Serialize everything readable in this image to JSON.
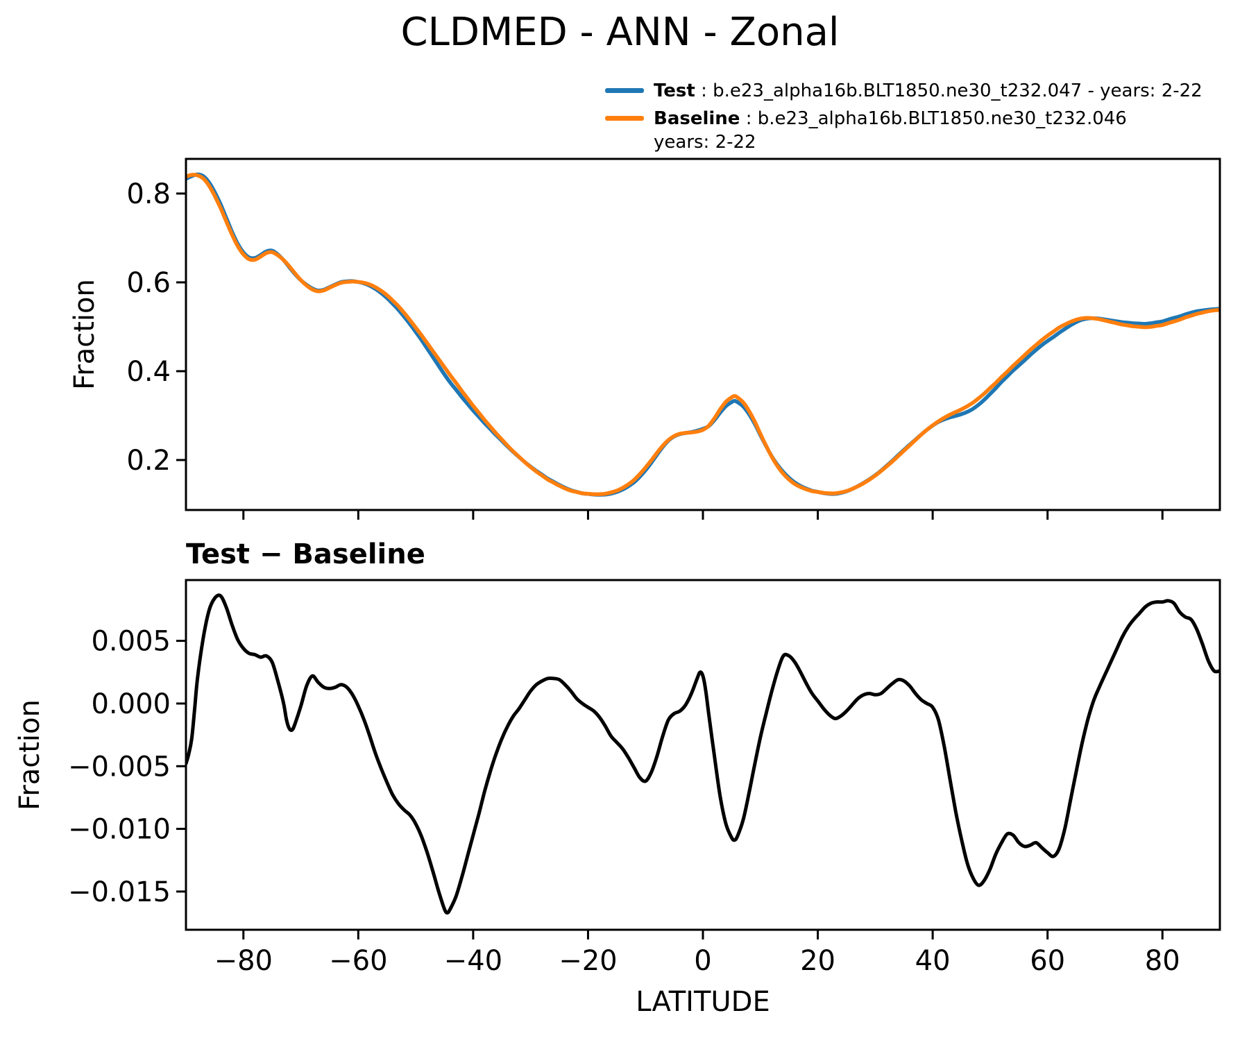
{
  "figure": {
    "background": "#ffffff"
  },
  "legend": {
    "test": {
      "name": "Test",
      "rest": " : b.e23_alpha16b.BLT1850.ne30_t232.047 - years: 2-22",
      "color": "#1f77b4"
    },
    "baseline": {
      "name": "Baseline",
      "rest": " : b.e23_alpha16b.BLT1850.ne30_t232.046",
      "rest2": "years: 2-22",
      "color": "#ff7f0e"
    }
  },
  "chart_data": {
    "type": "line",
    "title": "CLDMED - ANN - Zonal",
    "xlabel": "LATITUDE",
    "grid": false,
    "legend_position": "top-right",
    "xlim": [
      -90,
      90
    ],
    "xticks": [
      -80,
      -60,
      -40,
      -20,
      0,
      20,
      40,
      60,
      80
    ],
    "xtick_labels": [
      "−80",
      "−60",
      "−40",
      "−20",
      "0",
      "20",
      "40",
      "60",
      "80"
    ],
    "panels": [
      {
        "id": "top",
        "ylabel": "Fraction",
        "ylim": [
          0.0875,
          0.878
        ],
        "yticks": [
          0.8,
          0.6,
          0.4,
          0.2
        ],
        "ytick_labels": [
          "0.8",
          "0.6",
          "0.4",
          "0.2"
        ],
        "show_xtick_labels": false,
        "series": [
          {
            "name": "Test",
            "color": "#1f77b4",
            "derive": "baseline_plus_diff"
          },
          {
            "name": "Baseline",
            "color": "#ff7f0e",
            "points_ref": "baseline"
          }
        ]
      },
      {
        "id": "diff",
        "subtitle": "Test − Baseline",
        "ylabel": "Fraction",
        "ylim": [
          -0.01805,
          0.00985
        ],
        "yticks": [
          0.005,
          0.0,
          -0.005,
          -0.01,
          -0.015
        ],
        "ytick_labels": [
          "0.005",
          "0.000",
          "−0.005",
          "−0.010",
          "−0.015"
        ],
        "show_xtick_labels": true,
        "series": [
          {
            "name": "Test − Baseline",
            "color": "#000000",
            "points_ref": "diff"
          }
        ]
      }
    ],
    "baseline": [
      [
        -90,
        0.838
      ],
      [
        -89,
        0.842
      ],
      [
        -88,
        0.841
      ],
      [
        -87,
        0.834
      ],
      [
        -86,
        0.818
      ],
      [
        -85,
        0.795
      ],
      [
        -84,
        0.768
      ],
      [
        -83,
        0.738
      ],
      [
        -82,
        0.708
      ],
      [
        -81,
        0.682
      ],
      [
        -80,
        0.663
      ],
      [
        -79,
        0.652
      ],
      [
        -78,
        0.651
      ],
      [
        -77,
        0.658
      ],
      [
        -76,
        0.666
      ],
      [
        -75,
        0.668
      ],
      [
        -74,
        0.661
      ],
      [
        -73,
        0.65
      ],
      [
        -72,
        0.636
      ],
      [
        -71,
        0.62
      ],
      [
        -70,
        0.605
      ],
      [
        -69,
        0.593
      ],
      [
        -68,
        0.584
      ],
      [
        -67,
        0.58
      ],
      [
        -66,
        0.582
      ],
      [
        -65,
        0.588
      ],
      [
        -64,
        0.594
      ],
      [
        -63,
        0.599
      ],
      [
        -62,
        0.601
      ],
      [
        -61,
        0.602
      ],
      [
        -60,
        0.601
      ],
      [
        -59,
        0.599
      ],
      [
        -58,
        0.595
      ],
      [
        -57,
        0.589
      ],
      [
        -56,
        0.581
      ],
      [
        -55,
        0.571
      ],
      [
        -54,
        0.559
      ],
      [
        -53,
        0.546
      ],
      [
        -52,
        0.531
      ],
      [
        -51,
        0.515
      ],
      [
        -50,
        0.498
      ],
      [
        -49,
        0.481
      ],
      [
        -48,
        0.463
      ],
      [
        -47,
        0.445
      ],
      [
        -46,
        0.427
      ],
      [
        -45,
        0.409
      ],
      [
        -44,
        0.391
      ],
      [
        -43,
        0.374
      ],
      [
        -42,
        0.356
      ],
      [
        -41,
        0.339
      ],
      [
        -40,
        0.322
      ],
      [
        -39,
        0.306
      ],
      [
        -38,
        0.29
      ],
      [
        -37,
        0.275
      ],
      [
        -36,
        0.26
      ],
      [
        -35,
        0.246
      ],
      [
        -34,
        0.232
      ],
      [
        -33,
        0.219
      ],
      [
        -32,
        0.207
      ],
      [
        -31,
        0.195
      ],
      [
        -30,
        0.184
      ],
      [
        -29,
        0.174
      ],
      [
        -28,
        0.165
      ],
      [
        -27,
        0.156
      ],
      [
        -26,
        0.149
      ],
      [
        -25,
        0.142
      ],
      [
        -24,
        0.136
      ],
      [
        -23,
        0.131
      ],
      [
        -22,
        0.128
      ],
      [
        -21,
        0.125
      ],
      [
        -20,
        0.124
      ],
      [
        -19,
        0.123
      ],
      [
        -18,
        0.123
      ],
      [
        -17,
        0.124
      ],
      [
        -16,
        0.127
      ],
      [
        -15,
        0.131
      ],
      [
        -14,
        0.137
      ],
      [
        -13,
        0.145
      ],
      [
        -12,
        0.155
      ],
      [
        -11,
        0.168
      ],
      [
        -10,
        0.183
      ],
      [
        -9,
        0.199
      ],
      [
        -8,
        0.216
      ],
      [
        -7,
        0.232
      ],
      [
        -6,
        0.245
      ],
      [
        -5,
        0.254
      ],
      [
        -4,
        0.259
      ],
      [
        -3,
        0.261
      ],
      [
        -2,
        0.262
      ],
      [
        -1,
        0.264
      ],
      [
        0,
        0.268
      ],
      [
        1,
        0.277
      ],
      [
        2,
        0.294
      ],
      [
        3,
        0.314
      ],
      [
        4,
        0.331
      ],
      [
        5,
        0.341
      ],
      [
        5.5,
        0.344
      ],
      [
        6,
        0.341
      ],
      [
        7,
        0.33
      ],
      [
        8,
        0.311
      ],
      [
        9,
        0.287
      ],
      [
        10,
        0.259
      ],
      [
        11,
        0.232
      ],
      [
        12,
        0.207
      ],
      [
        13,
        0.186
      ],
      [
        14,
        0.169
      ],
      [
        15,
        0.156
      ],
      [
        16,
        0.146
      ],
      [
        17,
        0.139
      ],
      [
        18,
        0.134
      ],
      [
        19,
        0.13
      ],
      [
        20,
        0.128
      ],
      [
        21,
        0.126
      ],
      [
        22,
        0.125
      ],
      [
        23,
        0.125
      ],
      [
        24,
        0.127
      ],
      [
        25,
        0.13
      ],
      [
        26,
        0.135
      ],
      [
        27,
        0.141
      ],
      [
        28,
        0.148
      ],
      [
        29,
        0.156
      ],
      [
        30,
        0.165
      ],
      [
        31,
        0.175
      ],
      [
        32,
        0.186
      ],
      [
        33,
        0.197
      ],
      [
        34,
        0.209
      ],
      [
        35,
        0.221
      ],
      [
        36,
        0.233
      ],
      [
        37,
        0.245
      ],
      [
        38,
        0.257
      ],
      [
        39,
        0.268
      ],
      [
        40,
        0.278
      ],
      [
        41,
        0.287
      ],
      [
        42,
        0.295
      ],
      [
        43,
        0.302
      ],
      [
        44,
        0.308
      ],
      [
        45,
        0.314
      ],
      [
        46,
        0.321
      ],
      [
        47,
        0.329
      ],
      [
        48,
        0.339
      ],
      [
        49,
        0.35
      ],
      [
        50,
        0.362
      ],
      [
        51,
        0.374
      ],
      [
        52,
        0.387
      ],
      [
        53,
        0.399
      ],
      [
        54,
        0.412
      ],
      [
        55,
        0.424
      ],
      [
        56,
        0.436
      ],
      [
        57,
        0.448
      ],
      [
        58,
        0.459
      ],
      [
        59,
        0.47
      ],
      [
        60,
        0.48
      ],
      [
        61,
        0.489
      ],
      [
        62,
        0.498
      ],
      [
        63,
        0.505
      ],
      [
        64,
        0.511
      ],
      [
        65,
        0.516
      ],
      [
        66,
        0.519
      ],
      [
        67,
        0.52
      ],
      [
        68,
        0.519
      ],
      [
        69,
        0.517
      ],
      [
        70,
        0.514
      ],
      [
        71,
        0.511
      ],
      [
        72,
        0.508
      ],
      [
        73,
        0.505
      ],
      [
        74,
        0.503
      ],
      [
        75,
        0.501
      ],
      [
        76,
        0.5
      ],
      [
        77,
        0.499
      ],
      [
        78,
        0.5
      ],
      [
        79,
        0.502
      ],
      [
        80,
        0.504
      ],
      [
        81,
        0.508
      ],
      [
        82,
        0.512
      ],
      [
        83,
        0.516
      ],
      [
        84,
        0.521
      ],
      [
        85,
        0.525
      ],
      [
        86,
        0.529
      ],
      [
        87,
        0.532
      ],
      [
        88,
        0.535
      ],
      [
        89,
        0.537
      ],
      [
        90,
        0.538
      ]
    ],
    "diff": [
      [
        -90,
        -0.0048
      ],
      [
        -89.5,
        -0.004
      ],
      [
        -89,
        -0.0028
      ],
      [
        -88.5,
        -0.0005
      ],
      [
        -88,
        0.002
      ],
      [
        -87,
        0.0052
      ],
      [
        -86,
        0.0074
      ],
      [
        -85,
        0.0084
      ],
      [
        -84,
        0.0086
      ],
      [
        -83,
        0.0077
      ],
      [
        -82,
        0.0063
      ],
      [
        -81,
        0.0051
      ],
      [
        -80,
        0.0044
      ],
      [
        -79,
        0.004
      ],
      [
        -78,
        0.0039
      ],
      [
        -77,
        0.0037
      ],
      [
        -76,
        0.0038
      ],
      [
        -75,
        0.0033
      ],
      [
        -74,
        0.0018
      ],
      [
        -73,
        0.0
      ],
      [
        -72.5,
        -0.0013
      ],
      [
        -72,
        -0.002
      ],
      [
        -71.5,
        -0.0021
      ],
      [
        -71,
        -0.0016
      ],
      [
        -70,
        -0.0002
      ],
      [
        -69,
        0.0014
      ],
      [
        -68,
        0.0022
      ],
      [
        -67,
        0.0017
      ],
      [
        -66,
        0.0013
      ],
      [
        -65,
        0.0012
      ],
      [
        -64,
        0.0013
      ],
      [
        -63,
        0.0015
      ],
      [
        -62,
        0.0013
      ],
      [
        -61,
        0.0007
      ],
      [
        -60,
        -0.0002
      ],
      [
        -59,
        -0.0013
      ],
      [
        -58,
        -0.0026
      ],
      [
        -57,
        -0.004
      ],
      [
        -56,
        -0.0052
      ],
      [
        -55,
        -0.0063
      ],
      [
        -54,
        -0.0073
      ],
      [
        -53,
        -0.008
      ],
      [
        -52,
        -0.0085
      ],
      [
        -51,
        -0.0089
      ],
      [
        -50,
        -0.0096
      ],
      [
        -49,
        -0.0106
      ],
      [
        -48,
        -0.0119
      ],
      [
        -47,
        -0.0134
      ],
      [
        -46,
        -0.015
      ],
      [
        -45,
        -0.0164
      ],
      [
        -44.5,
        -0.0167
      ],
      [
        -44,
        -0.0164
      ],
      [
        -43,
        -0.0154
      ],
      [
        -42,
        -0.0139
      ],
      [
        -41,
        -0.0122
      ],
      [
        -40,
        -0.0105
      ],
      [
        -39,
        -0.0088
      ],
      [
        -38,
        -0.007
      ],
      [
        -37,
        -0.0054
      ],
      [
        -36,
        -0.004
      ],
      [
        -35,
        -0.0028
      ],
      [
        -34,
        -0.0018
      ],
      [
        -33,
        -0.001
      ],
      [
        -32,
        -0.0004
      ],
      [
        -31,
        0.0003
      ],
      [
        -30,
        0.001
      ],
      [
        -29,
        0.0015
      ],
      [
        -28,
        0.0018
      ],
      [
        -27,
        0.002
      ],
      [
        -26,
        0.002
      ],
      [
        -25,
        0.0019
      ],
      [
        -24,
        0.0015
      ],
      [
        -23,
        0.001
      ],
      [
        -22,
        0.0004
      ],
      [
        -21,
        0.0
      ],
      [
        -20,
        -0.0003
      ],
      [
        -19,
        -0.0006
      ],
      [
        -18,
        -0.0011
      ],
      [
        -17,
        -0.0018
      ],
      [
        -16,
        -0.0026
      ],
      [
        -15,
        -0.0031
      ],
      [
        -14,
        -0.0036
      ],
      [
        -13,
        -0.0043
      ],
      [
        -12,
        -0.0051
      ],
      [
        -11,
        -0.0059
      ],
      [
        -10,
        -0.0062
      ],
      [
        -9,
        -0.0055
      ],
      [
        -8,
        -0.0042
      ],
      [
        -7,
        -0.0026
      ],
      [
        -6,
        -0.0013
      ],
      [
        -5,
        -0.0008
      ],
      [
        -4,
        -0.0006
      ],
      [
        -3,
        -0.0001
      ],
      [
        -2,
        0.0008
      ],
      [
        -1,
        0.002
      ],
      [
        -0.5,
        0.0025
      ],
      [
        0,
        0.0022
      ],
      [
        0.5,
        0.001
      ],
      [
        1,
        -0.0008
      ],
      [
        2,
        -0.0042
      ],
      [
        3,
        -0.0074
      ],
      [
        4,
        -0.0096
      ],
      [
        5,
        -0.0107
      ],
      [
        5.5,
        -0.0109
      ],
      [
        6,
        -0.0106
      ],
      [
        7,
        -0.0093
      ],
      [
        8,
        -0.0072
      ],
      [
        9,
        -0.0049
      ],
      [
        10,
        -0.0027
      ],
      [
        11,
        -0.0008
      ],
      [
        12,
        0.001
      ],
      [
        13,
        0.0026
      ],
      [
        14,
        0.0038
      ],
      [
        15,
        0.0038
      ],
      [
        16,
        0.0033
      ],
      [
        17,
        0.0025
      ],
      [
        18,
        0.0016
      ],
      [
        19,
        0.0008
      ],
      [
        20,
        0.0002
      ],
      [
        21,
        -0.0004
      ],
      [
        22,
        -0.0009
      ],
      [
        23,
        -0.0012
      ],
      [
        24,
        -0.001
      ],
      [
        25,
        -0.0006
      ],
      [
        26,
        -0.0001
      ],
      [
        27,
        0.0004
      ],
      [
        28,
        0.0007
      ],
      [
        29,
        0.0008
      ],
      [
        30,
        0.0007
      ],
      [
        31,
        0.0008
      ],
      [
        32,
        0.0012
      ],
      [
        33,
        0.0016
      ],
      [
        34,
        0.0019
      ],
      [
        35,
        0.0018
      ],
      [
        36,
        0.0014
      ],
      [
        37,
        0.0008
      ],
      [
        38,
        0.0003
      ],
      [
        39,
        0.0
      ],
      [
        40,
        -0.0003
      ],
      [
        41,
        -0.0013
      ],
      [
        42,
        -0.0034
      ],
      [
        43,
        -0.006
      ],
      [
        44,
        -0.0086
      ],
      [
        45,
        -0.0108
      ],
      [
        46,
        -0.0127
      ],
      [
        47,
        -0.0139
      ],
      [
        48,
        -0.0145
      ],
      [
        49,
        -0.0141
      ],
      [
        50,
        -0.0132
      ],
      [
        51,
        -0.012
      ],
      [
        52,
        -0.0111
      ],
      [
        53,
        -0.0104
      ],
      [
        54,
        -0.0105
      ],
      [
        55,
        -0.0111
      ],
      [
        56,
        -0.0114
      ],
      [
        57,
        -0.0113
      ],
      [
        58,
        -0.0111
      ],
      [
        59,
        -0.0115
      ],
      [
        60,
        -0.0119
      ],
      [
        61,
        -0.0122
      ],
      [
        62,
        -0.0116
      ],
      [
        63,
        -0.01
      ],
      [
        64,
        -0.0077
      ],
      [
        65,
        -0.0054
      ],
      [
        66,
        -0.0032
      ],
      [
        67,
        -0.0013
      ],
      [
        68,
        0.0002
      ],
      [
        69,
        0.0013
      ],
      [
        70,
        0.0023
      ],
      [
        71,
        0.0033
      ],
      [
        72,
        0.0043
      ],
      [
        73,
        0.0053
      ],
      [
        74,
        0.0061
      ],
      [
        75,
        0.0067
      ],
      [
        76,
        0.0072
      ],
      [
        77,
        0.0077
      ],
      [
        78,
        0.008
      ],
      [
        79,
        0.0081
      ],
      [
        80,
        0.0081
      ],
      [
        81,
        0.0082
      ],
      [
        82,
        0.008
      ],
      [
        83,
        0.0073
      ],
      [
        84,
        0.0069
      ],
      [
        85,
        0.0067
      ],
      [
        86,
        0.0059
      ],
      [
        87,
        0.0047
      ],
      [
        88,
        0.0034
      ],
      [
        89,
        0.0026
      ],
      [
        90,
        0.0026
      ]
    ]
  }
}
